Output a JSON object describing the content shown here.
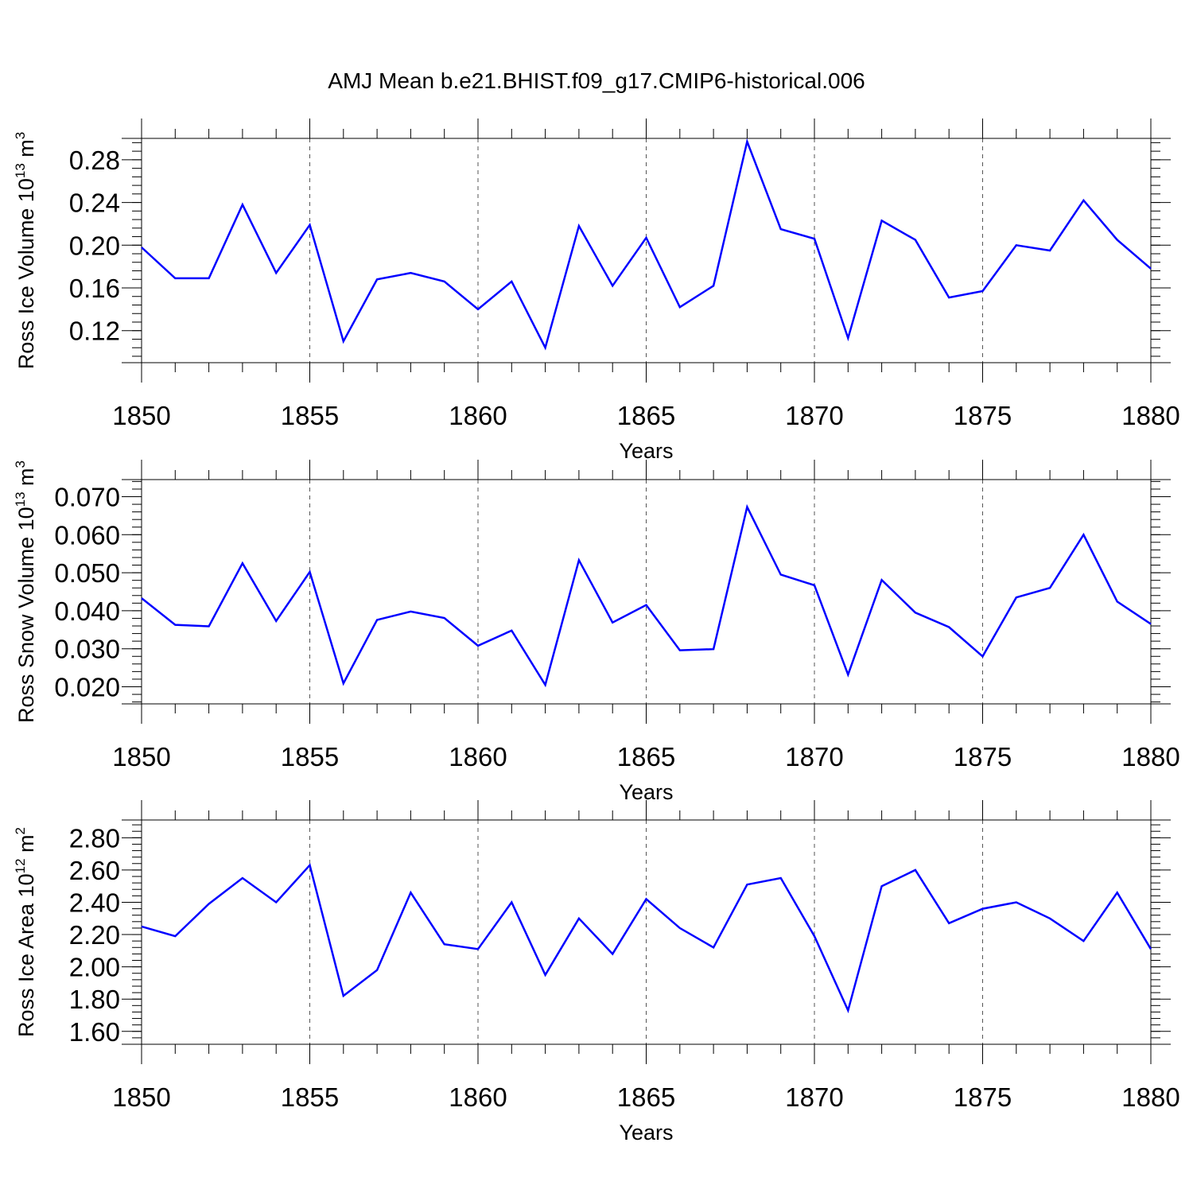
{
  "title": "AMJ Mean b.e21.BHIST.f09_g17.CMIP6-historical.006",
  "line_color": "#0000ff",
  "chart_data": [
    {
      "type": "line",
      "ylabel_main": "Ross Ice Volume 10",
      "ylabel_exp": "13",
      "ylabel_unit": " m",
      "ylabel_unit_exp": "3",
      "xlabel": "Years",
      "xlim": [
        1850,
        1880
      ],
      "ylim": [
        0.09,
        0.3
      ],
      "yticks": [
        0.12,
        0.16,
        0.2,
        0.24,
        0.28
      ],
      "ytick_labels": [
        "0.12",
        "0.16",
        "0.20",
        "0.24",
        "0.28"
      ],
      "xticks": [
        1850,
        1855,
        1860,
        1865,
        1870,
        1875,
        1880
      ],
      "xtick_labels": [
        "1850",
        "1855",
        "1860",
        "1865",
        "1870",
        "1875",
        "1880"
      ],
      "grid": "vertical dashed",
      "x": [
        1850,
        1851,
        1852,
        1853,
        1854,
        1855,
        1856,
        1857,
        1858,
        1859,
        1860,
        1861,
        1862,
        1863,
        1864,
        1865,
        1866,
        1867,
        1868,
        1869,
        1870,
        1871,
        1872,
        1873,
        1874,
        1875,
        1876,
        1877,
        1878,
        1879,
        1880
      ],
      "values": [
        0.198,
        0.169,
        0.169,
        0.238,
        0.174,
        0.219,
        0.11,
        0.168,
        0.174,
        0.166,
        0.14,
        0.166,
        0.104,
        0.218,
        0.162,
        0.207,
        0.142,
        0.162,
        0.297,
        0.215,
        0.206,
        0.113,
        0.223,
        0.205,
        0.151,
        0.157,
        0.2,
        0.195,
        0.242,
        0.205,
        0.178
      ]
    },
    {
      "type": "line",
      "ylabel_main": "Ross Snow Volume 10",
      "ylabel_exp": "13",
      "ylabel_unit": " m",
      "ylabel_unit_exp": "3",
      "xlabel": "Years",
      "xlim": [
        1850,
        1880
      ],
      "ylim": [
        0.0155,
        0.0745
      ],
      "yticks": [
        0.02,
        0.03,
        0.04,
        0.05,
        0.06,
        0.07
      ],
      "ytick_labels": [
        "0.020",
        "0.030",
        "0.040",
        "0.050",
        "0.060",
        "0.070"
      ],
      "xticks": [
        1850,
        1855,
        1860,
        1865,
        1870,
        1875,
        1880
      ],
      "xtick_labels": [
        "1850",
        "1855",
        "1860",
        "1865",
        "1870",
        "1875",
        "1880"
      ],
      "grid": "vertical dashed",
      "x": [
        1850,
        1851,
        1852,
        1853,
        1854,
        1855,
        1856,
        1857,
        1858,
        1859,
        1860,
        1861,
        1862,
        1863,
        1864,
        1865,
        1866,
        1867,
        1868,
        1869,
        1870,
        1871,
        1872,
        1873,
        1874,
        1875,
        1876,
        1877,
        1878,
        1879,
        1880
      ],
      "values": [
        0.0433,
        0.0363,
        0.0359,
        0.0525,
        0.0373,
        0.0502,
        0.0209,
        0.0376,
        0.0398,
        0.0381,
        0.0308,
        0.0348,
        0.0205,
        0.0533,
        0.0369,
        0.0415,
        0.0296,
        0.0299,
        0.0673,
        0.0495,
        0.0467,
        0.0232,
        0.0481,
        0.0395,
        0.0357,
        0.028,
        0.0435,
        0.046,
        0.06,
        0.0424,
        0.0365
      ]
    },
    {
      "type": "line",
      "ylabel_main": "Ross Ice Area 10",
      "ylabel_exp": "12",
      "ylabel_unit": " m",
      "ylabel_unit_exp": "2",
      "xlabel": "Years",
      "xlim": [
        1850,
        1880
      ],
      "ylim": [
        1.52,
        2.91
      ],
      "yticks": [
        1.6,
        1.8,
        2.0,
        2.2,
        2.4,
        2.6,
        2.8
      ],
      "ytick_labels": [
        "1.60",
        "1.80",
        "2.00",
        "2.20",
        "2.40",
        "2.60",
        "2.80"
      ],
      "xticks": [
        1850,
        1855,
        1860,
        1865,
        1870,
        1875,
        1880
      ],
      "xtick_labels": [
        "1850",
        "1855",
        "1860",
        "1865",
        "1870",
        "1875",
        "1880"
      ],
      "grid": "vertical dashed",
      "x": [
        1850,
        1851,
        1852,
        1853,
        1854,
        1855,
        1856,
        1857,
        1858,
        1859,
        1860,
        1861,
        1862,
        1863,
        1864,
        1865,
        1866,
        1867,
        1868,
        1869,
        1870,
        1871,
        1872,
        1873,
        1874,
        1875,
        1876,
        1877,
        1878,
        1879,
        1880
      ],
      "values": [
        2.25,
        2.19,
        2.39,
        2.55,
        2.4,
        2.63,
        1.82,
        1.98,
        2.46,
        2.14,
        2.11,
        2.4,
        1.95,
        2.3,
        2.08,
        2.42,
        2.24,
        2.12,
        2.51,
        2.55,
        2.19,
        1.73,
        2.5,
        2.6,
        2.27,
        2.36,
        2.4,
        2.3,
        2.16,
        2.46,
        2.11
      ]
    }
  ]
}
